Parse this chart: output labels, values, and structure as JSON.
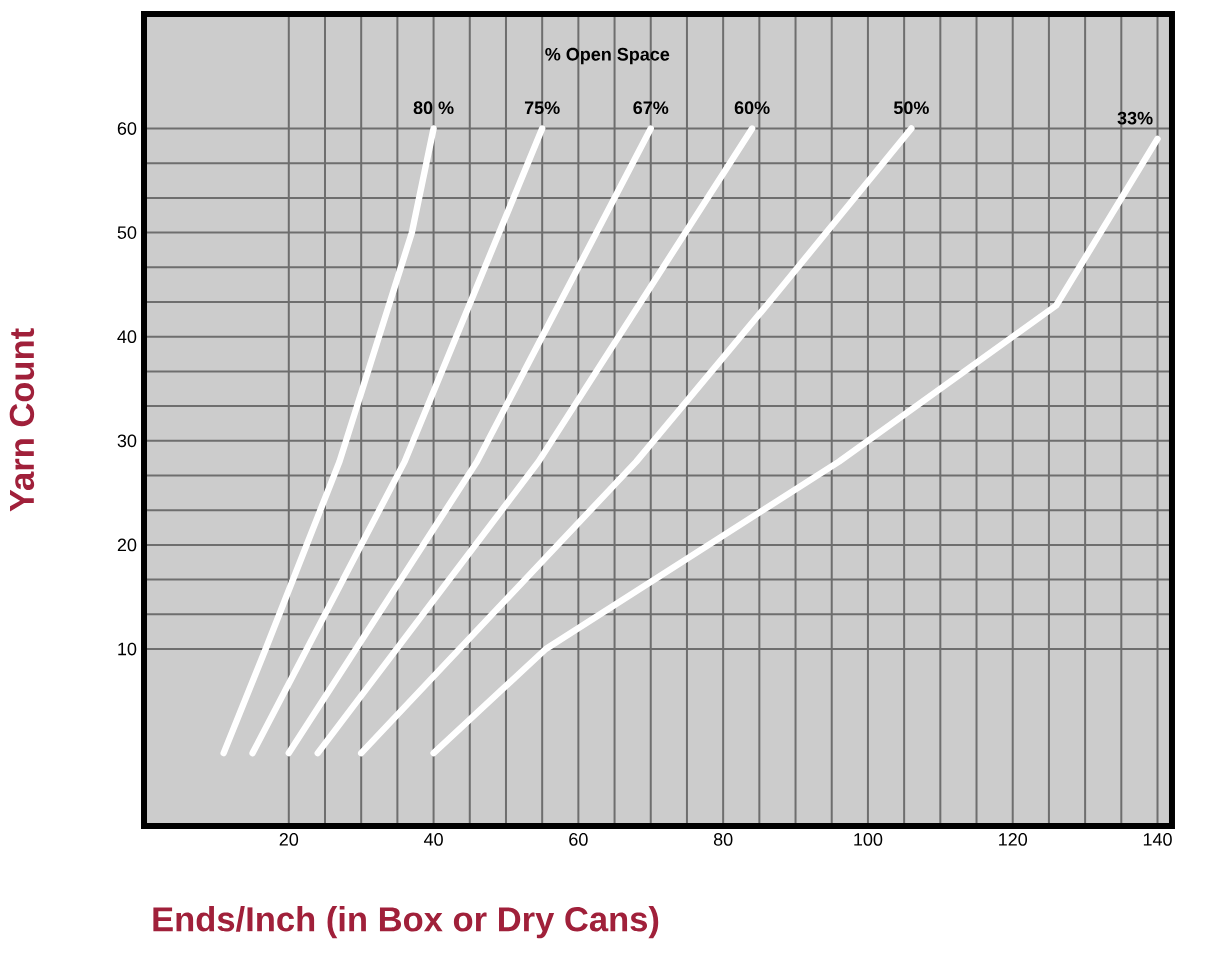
{
  "chart_data": {
    "type": "line",
    "xlabel": "Ends/Inch (in Box or Dry Cans)",
    "ylabel": "Yarn Count",
    "legend_title": "% Open Space",
    "xlim": [
      0,
      142
    ],
    "ylim": [
      -7,
      71
    ],
    "xticks": [
      20,
      40,
      60,
      80,
      100,
      120,
      140
    ],
    "yticks": [
      10,
      20,
      30,
      40,
      50,
      60
    ],
    "grid": true,
    "legend": false,
    "marker": "none",
    "line_style": "solid",
    "series": [
      {
        "name": "80 %",
        "color": "#ffffff",
        "x": [
          11,
          16.8,
          27,
          37,
          40
        ],
        "values": [
          0,
          10,
          28,
          50,
          60
        ]
      },
      {
        "name": "75%",
        "color": "#ffffff",
        "x": [
          15,
          36,
          55
        ],
        "values": [
          0,
          28,
          60
        ]
      },
      {
        "name": "67%",
        "color": "#ffffff",
        "x": [
          20,
          46,
          70
        ],
        "values": [
          0,
          28,
          60
        ]
      },
      {
        "name": "60%",
        "color": "#ffffff",
        "x": [
          24,
          54.5,
          84
        ],
        "values": [
          0,
          28,
          60
        ]
      },
      {
        "name": "50%",
        "color": "#ffffff",
        "x": [
          30,
          68,
          86,
          106
        ],
        "values": [
          0,
          28,
          43,
          60
        ]
      },
      {
        "name": "33%",
        "color": "#ffffff",
        "x": [
          40,
          55.5,
          96,
          126,
          140
        ],
        "values": [
          0,
          10,
          28,
          43,
          59
        ]
      }
    ]
  }
}
